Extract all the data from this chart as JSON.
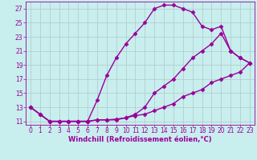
{
  "xlabel": "Windchill (Refroidissement éolien,°C)",
  "bg_color": "#c8eeee",
  "line_color": "#990099",
  "grid_color": "#b0c8c8",
  "xlim": [
    -0.5,
    23.5
  ],
  "ylim": [
    10.5,
    28.0
  ],
  "yticks": [
    11,
    13,
    15,
    17,
    19,
    21,
    23,
    25,
    27
  ],
  "xticks": [
    0,
    1,
    2,
    3,
    4,
    5,
    6,
    7,
    8,
    9,
    10,
    11,
    12,
    13,
    14,
    15,
    16,
    17,
    18,
    19,
    20,
    21,
    22,
    23
  ],
  "line1_x": [
    0,
    1,
    2,
    3,
    4,
    5,
    6,
    7,
    8,
    9,
    10,
    11,
    12,
    13,
    14,
    15,
    16,
    17,
    18,
    19,
    20,
    21,
    22,
    23
  ],
  "line1_y": [
    13,
    12,
    11,
    11,
    11,
    11,
    11,
    11.2,
    11.2,
    11.2,
    11.5,
    12,
    13,
    15,
    16,
    17,
    18.5,
    20,
    21,
    22,
    23.5,
    21,
    20,
    19.3
  ],
  "line2_x": [
    0,
    1,
    2,
    3,
    4,
    5,
    6,
    7,
    8,
    9,
    10,
    11,
    12,
    13,
    14,
    15,
    16,
    17,
    18,
    19,
    20,
    21,
    22,
    23
  ],
  "line2_y": [
    13,
    12,
    11,
    11,
    11,
    11,
    11,
    14,
    17.5,
    20,
    22,
    23.5,
    25,
    27,
    27.5,
    27.5,
    27,
    26.5,
    24.5,
    24,
    24.5,
    21,
    20,
    19.3
  ],
  "line3_x": [
    0,
    1,
    2,
    3,
    4,
    5,
    6,
    7,
    8,
    9,
    10,
    11,
    12,
    13,
    14,
    15,
    16,
    17,
    18,
    19,
    20,
    21,
    22,
    23
  ],
  "line3_y": [
    13,
    12,
    11,
    11,
    11,
    11,
    11,
    11.2,
    11.2,
    11.3,
    11.5,
    11.8,
    12,
    12.5,
    13,
    13.5,
    14.5,
    15,
    15.5,
    16.5,
    17,
    17.5,
    18,
    19.3
  ],
  "marker": "D",
  "markersize": 2.5,
  "linewidth": 1.0,
  "tick_fontsize": 5.5,
  "label_fontsize": 6.0
}
